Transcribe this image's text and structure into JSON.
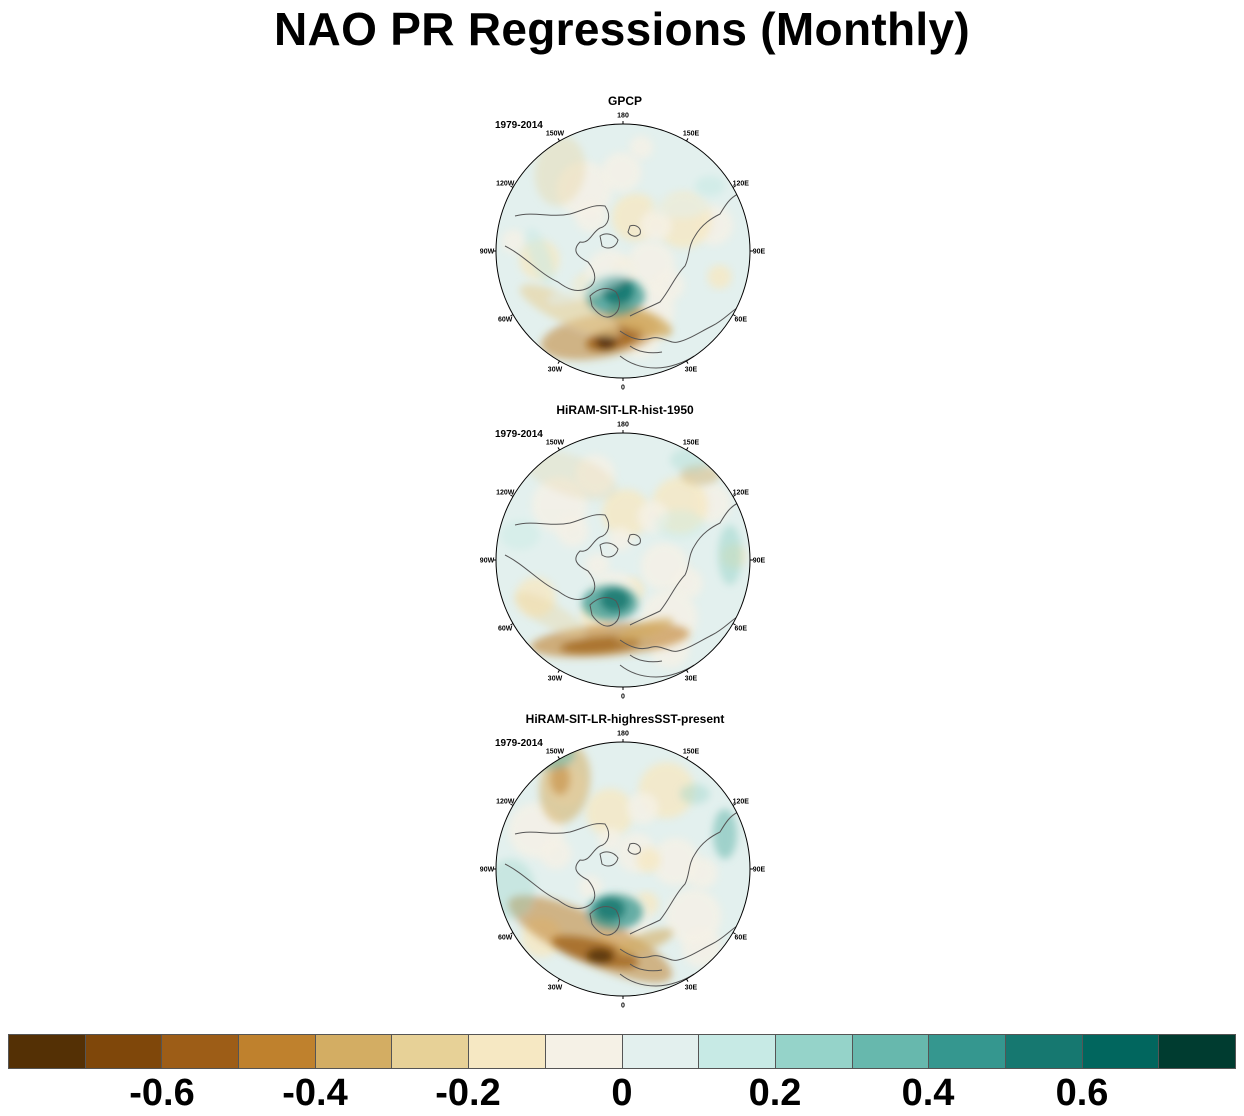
{
  "title": "NAO PR Regressions (Monthly)",
  "panels": [
    {
      "title": "GPCP",
      "period": "1979-2014"
    },
    {
      "title": "HiRAM-SIT-LR-hist-1950",
      "period": "1979-2014"
    },
    {
      "title": "HiRAM-SIT-LR-highresSST-present",
      "period": "1979-2014"
    }
  ],
  "longitude_labels": [
    "180",
    "150E",
    "120E",
    "90E",
    "60E",
    "30E",
    "0",
    "30W",
    "60W",
    "90W",
    "120W",
    "150W"
  ],
  "colorbar": {
    "colors": [
      "#543005",
      "#7f470a",
      "#9d5d17",
      "#bf812d",
      "#d3ad63",
      "#e7d197",
      "#f6e8c3",
      "#f5f1e6",
      "#e3f0ee",
      "#c7eae5",
      "#95d3c9",
      "#67b8ad",
      "#35978f",
      "#167870",
      "#01665e",
      "#003c30"
    ],
    "labels": [
      "-0.6",
      "-0.4",
      "-0.2",
      "0",
      "0.2",
      "0.4",
      "0.6"
    ]
  }
}
